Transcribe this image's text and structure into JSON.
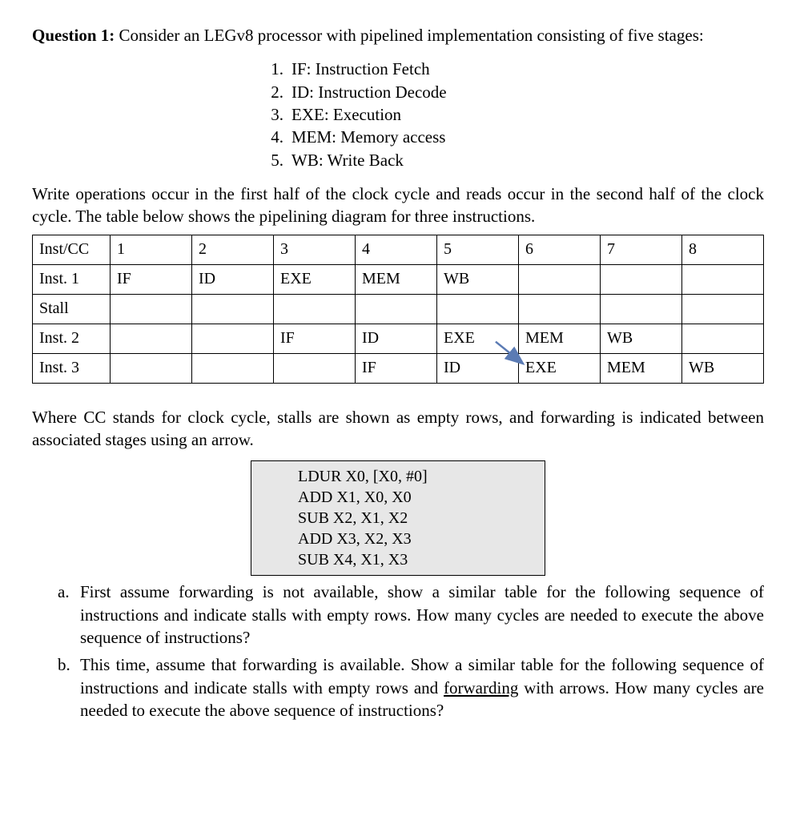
{
  "question": {
    "label": "Question 1:",
    "intro": " Consider an LEGv8 processor with pipelined implementation consisting of five stages:"
  },
  "stages": [
    {
      "n": "1.",
      "t": "IF: Instruction Fetch"
    },
    {
      "n": "2.",
      "t": "ID: Instruction Decode"
    },
    {
      "n": "3.",
      "t": "EXE: Execution"
    },
    {
      "n": "4.",
      "t": "MEM: Memory access"
    },
    {
      "n": "5.",
      "t": "WB: Write Back"
    }
  ],
  "para1": "Write operations occur in the first half of the clock cycle and reads occur in the second half of the clock cycle. The table below shows the pipelining diagram for three instructions.",
  "table": {
    "header": [
      "Inst/CC",
      "1",
      "2",
      "3",
      "4",
      "5",
      "6",
      "7",
      "8"
    ],
    "rows": [
      [
        "Inst. 1",
        "IF",
        "ID",
        "EXE",
        "MEM",
        "WB",
        "",
        "",
        ""
      ],
      [
        "Stall",
        "",
        "",
        "",
        "",
        "",
        "",
        "",
        ""
      ],
      [
        "Inst. 2",
        "",
        "",
        "IF",
        "ID",
        "EXE",
        "MEM",
        "WB",
        ""
      ],
      [
        "Inst. 3",
        "",
        "",
        "",
        "IF",
        "ID",
        "EXE",
        "MEM",
        "WB"
      ]
    ],
    "border_color": "#000000",
    "arrow_color": "#5b7bb4"
  },
  "para2": "Where CC stands for clock cycle, stalls are shown as empty rows, and forwarding is indicated between associated stages using an arrow.",
  "code": [
    "LDUR X0, [X0, #0]",
    "ADD X1, X0, X0",
    "SUB X2, X1, X2",
    "ADD X3, X2, X3",
    "SUB X4, X1, X3"
  ],
  "sub": {
    "a": {
      "letter": "a.",
      "text": "First assume forwarding is not available, show a similar table for the following sequence of instructions and indicate stalls with empty rows. How many cycles are needed to execute the above sequence of instructions?"
    },
    "b": {
      "letter": "b.",
      "text_pre": "This time, assume that forwarding is available. Show a similar table for the following sequence of instructions and indicate stalls with empty rows and ",
      "text_u": "forwarding",
      "text_post": " with arrows. How many cycles are needed to execute the above sequence of instructions?"
    }
  },
  "codebox_bg": "#e7e7e7"
}
